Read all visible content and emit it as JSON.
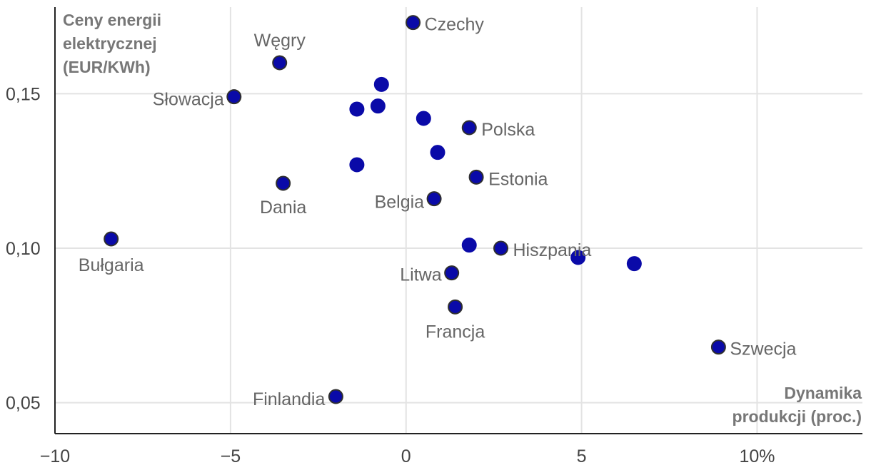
{
  "chart_data": {
    "type": "scatter",
    "title": "",
    "xlabel": [
      "Dynamika",
      "produkcji (proc.)"
    ],
    "ylabel": [
      "Ceny energii",
      "elektrycznej",
      "(EUR/KWh)"
    ],
    "xlim": [
      -10,
      13
    ],
    "ylim": [
      0.04,
      0.178
    ],
    "x_ticks": [
      {
        "value": -10,
        "label": "−10"
      },
      {
        "value": -5,
        "label": "−5"
      },
      {
        "value": 0,
        "label": "0"
      },
      {
        "value": 5,
        "label": "5"
      },
      {
        "value": 10,
        "label": "10%"
      }
    ],
    "y_ticks": [
      {
        "value": 0.05,
        "label": "0,05"
      },
      {
        "value": 0.1,
        "label": "0,10"
      },
      {
        "value": 0.15,
        "label": "0,15"
      }
    ],
    "colors": {
      "point_fill": "#0a0aa8",
      "point_stroke_labeled": "#2f2f2f"
    },
    "points": [
      {
        "x": 0.2,
        "y": 0.173,
        "label": "Czechy"
      },
      {
        "x": -3.6,
        "y": 0.16,
        "label": "Węgry"
      },
      {
        "x": -4.9,
        "y": 0.149,
        "label": "Słowacja"
      },
      {
        "x": 1.8,
        "y": 0.139,
        "label": "Polska"
      },
      {
        "x": 2.0,
        "y": 0.123,
        "label": "Estonia"
      },
      {
        "x": -3.5,
        "y": 0.121,
        "label": "Dania"
      },
      {
        "x": 0.8,
        "y": 0.116,
        "label": "Belgia"
      },
      {
        "x": -8.4,
        "y": 0.103,
        "label": "Bułgaria"
      },
      {
        "x": 2.7,
        "y": 0.1,
        "label": "Hiszpania"
      },
      {
        "x": 1.3,
        "y": 0.092,
        "label": "Litwa"
      },
      {
        "x": 1.4,
        "y": 0.081,
        "label": "Francja"
      },
      {
        "x": 8.9,
        "y": 0.068,
        "label": "Szwecja"
      },
      {
        "x": -2.0,
        "y": 0.052,
        "label": "Finlandia"
      },
      {
        "x": -0.7,
        "y": 0.153,
        "label": ""
      },
      {
        "x": -1.4,
        "y": 0.145,
        "label": ""
      },
      {
        "x": -0.8,
        "y": 0.146,
        "label": ""
      },
      {
        "x": 0.5,
        "y": 0.142,
        "label": ""
      },
      {
        "x": 0.9,
        "y": 0.131,
        "label": ""
      },
      {
        "x": -1.4,
        "y": 0.127,
        "label": ""
      },
      {
        "x": 1.8,
        "y": 0.101,
        "label": ""
      },
      {
        "x": 4.9,
        "y": 0.097,
        "label": ""
      },
      {
        "x": 6.5,
        "y": 0.095,
        "label": ""
      }
    ]
  }
}
